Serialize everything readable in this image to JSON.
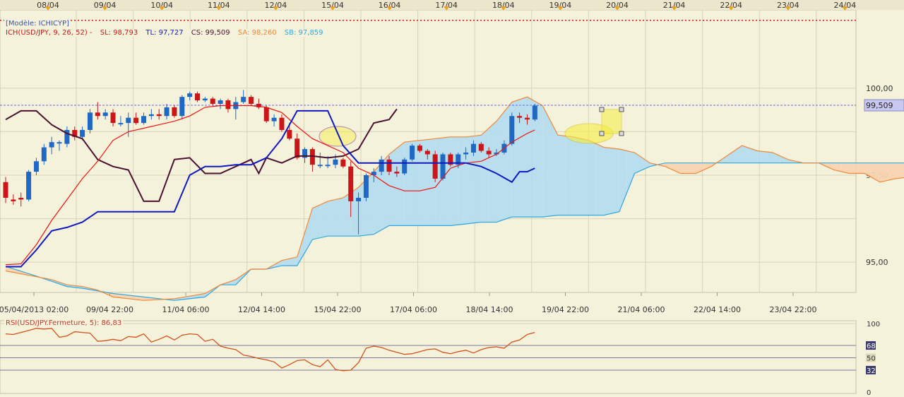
{
  "header": {
    "model": "[Modèle: ICHICYP]",
    "ich_label": "ICH(USD/JPY, 9, 26, 52)  -",
    "sl_label": "SL: 98,793",
    "tl_label": "TL: 97,727",
    "cs_label": "CS: 99,509",
    "sa_label": "SA: 98,260",
    "sb_label": "SB: 97,859",
    "rsi_label": "RSI(USD/JPY.Fermeture, 5): 86,83"
  },
  "colors": {
    "background": "#f5f2dc",
    "plot_bg": "#f5f2dc",
    "grid": "#d8d3b8",
    "up_candle": "#1f68c4",
    "down_candle": "#cc1518",
    "tenkan": "#ee1111",
    "kijun": "#1018c0",
    "chikou": "#4a1030",
    "cloud_bull": "#b5dcee",
    "cloud_bear": "#f8d4b0",
    "senkou_a": "#f0883a",
    "senkou_b": "#30a8dc",
    "price_line": "#6a6ae0",
    "resistance": "#e81010",
    "rsi_line": "#d4501c",
    "highlight": "#f6ef40"
  },
  "chart_data": [
    {
      "type": "candlestick",
      "instrument": "USD/JPY",
      "top_dates": [
        "08/04",
        "09/04",
        "10/04",
        "11/04",
        "12/04",
        "15/04",
        "16/04",
        "17/04",
        "18/04",
        "19/04",
        "20/04",
        "21/04",
        "22/04",
        "23/04",
        "24/04"
      ],
      "x_tick_labels": [
        "05/04/2013 02:00",
        "09/04 22:00",
        "11/04 06:00",
        "12/04 14:00",
        "15/04 22:00",
        "17/04 06:00",
        "18/04 14:00",
        "19/04 22:00",
        "21/04 06:00",
        "22/04 14:00",
        "23/04 22:00"
      ],
      "y_ticks": [
        95,
        97.5,
        100
      ],
      "y_tick_labels": [
        "95,00",
        "97,50",
        "100,00"
      ],
      "ylim": [
        94.13,
        102.25
      ],
      "current_price": 99.509,
      "current_price_label": "99,509",
      "resistance_level": 101.95,
      "bar_count": 70,
      "candles": [
        [
          97.3,
          97.45,
          96.7,
          96.85
        ],
        [
          96.8,
          96.95,
          96.65,
          96.75
        ],
        [
          96.85,
          97.0,
          96.6,
          96.8
        ],
        [
          96.8,
          97.65,
          96.75,
          97.6
        ],
        [
          97.6,
          98.0,
          97.5,
          97.9
        ],
        [
          97.9,
          98.4,
          97.8,
          98.3
        ],
        [
          98.3,
          98.6,
          98.1,
          98.45
        ],
        [
          98.45,
          98.5,
          98.2,
          98.45
        ],
        [
          98.4,
          98.9,
          98.3,
          98.8
        ],
        [
          98.8,
          98.9,
          98.5,
          98.6
        ],
        [
          98.6,
          98.9,
          98.5,
          98.8
        ],
        [
          98.8,
          99.4,
          98.7,
          99.3
        ],
        [
          99.3,
          99.6,
          99.1,
          99.2
        ],
        [
          99.2,
          99.4,
          99.1,
          99.3
        ],
        [
          99.3,
          99.4,
          98.9,
          99.0
        ],
        [
          99.0,
          99.2,
          98.9,
          99.0
        ],
        [
          99.0,
          99.3,
          98.6,
          99.15
        ],
        [
          99.15,
          99.3,
          98.95,
          99.0
        ],
        [
          99.0,
          99.3,
          98.95,
          99.2
        ],
        [
          99.2,
          99.4,
          99.1,
          99.25
        ],
        [
          99.25,
          99.4,
          99.1,
          99.2
        ],
        [
          99.2,
          99.55,
          99.1,
          99.45
        ],
        [
          99.45,
          99.5,
          99.15,
          99.2
        ],
        [
          99.2,
          99.8,
          99.1,
          99.75
        ],
        [
          99.75,
          99.9,
          99.65,
          99.85
        ],
        [
          99.85,
          99.9,
          99.6,
          99.65
        ],
        [
          99.65,
          99.75,
          99.6,
          99.7
        ],
        [
          99.7,
          99.75,
          99.5,
          99.55
        ],
        [
          99.55,
          99.7,
          99.4,
          99.65
        ],
        [
          99.65,
          99.7,
          99.3,
          99.4
        ],
        [
          99.4,
          99.75,
          99.1,
          99.6
        ],
        [
          99.6,
          99.95,
          99.55,
          99.75
        ],
        [
          99.75,
          99.8,
          99.5,
          99.55
        ],
        [
          99.55,
          99.7,
          99.4,
          99.45
        ],
        [
          99.45,
          99.5,
          99.0,
          99.05
        ],
        [
          99.05,
          99.25,
          98.9,
          99.15
        ],
        [
          99.15,
          99.25,
          98.75,
          98.8
        ],
        [
          98.8,
          99.0,
          98.5,
          98.55
        ],
        [
          98.55,
          98.7,
          97.95,
          98.0
        ],
        [
          98.0,
          98.3,
          97.85,
          98.25
        ],
        [
          98.25,
          98.3,
          97.6,
          97.8
        ],
        [
          97.8,
          98.15,
          97.7,
          97.8
        ],
        [
          97.8,
          98.05,
          97.7,
          97.8
        ],
        [
          97.8,
          98.1,
          97.7,
          97.95
        ],
        [
          97.95,
          98.0,
          97.7,
          97.75
        ],
        [
          97.75,
          97.9,
          96.3,
          96.75
        ],
        [
          96.75,
          97.0,
          95.8,
          96.85
        ],
        [
          96.85,
          97.55,
          96.75,
          97.5
        ],
        [
          97.5,
          97.7,
          97.3,
          97.6
        ],
        [
          97.6,
          98.05,
          97.5,
          97.95
        ],
        [
          97.95,
          98.05,
          97.5,
          97.6
        ],
        [
          97.6,
          97.75,
          97.45,
          97.55
        ],
        [
          97.55,
          98.0,
          97.5,
          97.95
        ],
        [
          97.95,
          98.4,
          97.9,
          98.35
        ],
        [
          98.35,
          98.4,
          98.15,
          98.2
        ],
        [
          98.2,
          98.25,
          97.95,
          98.1
        ],
        [
          98.1,
          98.2,
          97.3,
          97.4
        ],
        [
          97.4,
          98.15,
          97.35,
          98.1
        ],
        [
          98.1,
          98.15,
          97.75,
          97.8
        ],
        [
          97.8,
          98.15,
          97.7,
          98.1
        ],
        [
          98.1,
          98.3,
          97.95,
          98.15
        ],
        [
          98.15,
          98.5,
          98.05,
          98.4
        ],
        [
          98.4,
          98.45,
          98.15,
          98.2
        ],
        [
          98.2,
          98.3,
          98.0,
          98.1
        ],
        [
          98.1,
          98.25,
          98.05,
          98.15
        ],
        [
          98.15,
          98.5,
          98.1,
          98.4
        ],
        [
          98.4,
          99.3,
          98.35,
          99.2
        ],
        [
          99.2,
          99.3,
          99.0,
          99.15
        ],
        [
          99.15,
          99.25,
          98.95,
          99.1
        ],
        [
          99.1,
          99.55,
          99.05,
          99.5
        ]
      ],
      "tenkan_sen": [
        [
          0,
          94.93
        ],
        [
          2,
          94.95
        ],
        [
          4,
          95.5
        ],
        [
          6,
          96.2
        ],
        [
          8,
          96.8
        ],
        [
          10,
          97.4
        ],
        [
          12,
          97.9
        ],
        [
          14,
          98.5
        ],
        [
          16,
          98.75
        ],
        [
          18,
          98.85
        ],
        [
          20,
          98.95
        ],
        [
          22,
          99.05
        ],
        [
          24,
          99.2
        ],
        [
          26,
          99.45
        ],
        [
          28,
          99.5
        ],
        [
          30,
          99.5
        ],
        [
          32,
          99.5
        ],
        [
          34,
          99.45
        ],
        [
          36,
          99.3
        ],
        [
          38,
          98.9
        ],
        [
          40,
          98.55
        ],
        [
          42,
          98.35
        ],
        [
          44,
          98.15
        ],
        [
          46,
          97.7
        ],
        [
          48,
          97.5
        ],
        [
          50,
          97.2
        ],
        [
          52,
          97.05
        ],
        [
          54,
          97.05
        ],
        [
          56,
          97.15
        ],
        [
          58,
          97.7
        ],
        [
          60,
          97.85
        ],
        [
          62,
          97.9
        ],
        [
          64,
          98.1
        ],
        [
          66,
          98.45
        ],
        [
          68,
          98.7
        ],
        [
          69,
          98.8
        ]
      ],
      "kijun_sen": [
        [
          0,
          94.87
        ],
        [
          2,
          94.87
        ],
        [
          4,
          95.35
        ],
        [
          6,
          95.9
        ],
        [
          8,
          96.0
        ],
        [
          10,
          96.15
        ],
        [
          12,
          96.45
        ],
        [
          16,
          96.45
        ],
        [
          20,
          96.45
        ],
        [
          22,
          96.45
        ],
        [
          24,
          97.5
        ],
        [
          26,
          97.75
        ],
        [
          28,
          97.75
        ],
        [
          30,
          97.8
        ],
        [
          32,
          97.8
        ],
        [
          34,
          98.0
        ],
        [
          36,
          98.55
        ],
        [
          38,
          99.35
        ],
        [
          40,
          99.35
        ],
        [
          42,
          99.35
        ],
        [
          44,
          98.35
        ],
        [
          46,
          97.85
        ],
        [
          48,
          97.85
        ],
        [
          50,
          97.85
        ],
        [
          52,
          97.85
        ],
        [
          54,
          97.85
        ],
        [
          56,
          97.85
        ],
        [
          58,
          97.85
        ],
        [
          60,
          97.85
        ],
        [
          62,
          97.75
        ],
        [
          64,
          97.55
        ],
        [
          66,
          97.3
        ],
        [
          67,
          97.6
        ],
        [
          68,
          97.6
        ],
        [
          69,
          97.7
        ]
      ],
      "chikou_span": [
        [
          0,
          99.1
        ],
        [
          2,
          99.35
        ],
        [
          4,
          99.35
        ],
        [
          6,
          98.95
        ],
        [
          8,
          98.7
        ],
        [
          10,
          98.55
        ],
        [
          12,
          97.95
        ],
        [
          14,
          97.75
        ],
        [
          16,
          97.65
        ],
        [
          18,
          96.75
        ],
        [
          20,
          96.75
        ],
        [
          22,
          97.95
        ],
        [
          24,
          98.0
        ],
        [
          26,
          97.55
        ],
        [
          28,
          97.55
        ],
        [
          30,
          97.75
        ],
        [
          32,
          97.95
        ],
        [
          33,
          97.55
        ],
        [
          34,
          98.0
        ],
        [
          36,
          97.85
        ],
        [
          38,
          98.05
        ],
        [
          40,
          98.05
        ],
        [
          42,
          98.0
        ],
        [
          44,
          98.05
        ],
        [
          46,
          98.25
        ],
        [
          48,
          99.0
        ],
        [
          50,
          99.1
        ],
        [
          51,
          99.4
        ]
      ],
      "senkou_a": [
        [
          0,
          94.75
        ],
        [
          6,
          94.5
        ],
        [
          8,
          94.35
        ],
        [
          10,
          94.3
        ],
        [
          12,
          94.2
        ],
        [
          14,
          94.0
        ],
        [
          18,
          93.9
        ],
        [
          22,
          93.95
        ],
        [
          26,
          94.1
        ],
        [
          28,
          94.35
        ],
        [
          30,
          94.5
        ],
        [
          32,
          94.8
        ],
        [
          34,
          94.8
        ],
        [
          36,
          95.05
        ],
        [
          38,
          95.15
        ],
        [
          40,
          96.55
        ],
        [
          42,
          96.75
        ],
        [
          44,
          96.85
        ],
        [
          46,
          97.15
        ],
        [
          48,
          97.6
        ],
        [
          50,
          98.1
        ],
        [
          52,
          98.45
        ],
        [
          54,
          98.5
        ],
        [
          56,
          98.55
        ],
        [
          58,
          98.6
        ],
        [
          60,
          98.6
        ],
        [
          62,
          98.65
        ],
        [
          64,
          99.05
        ],
        [
          66,
          99.6
        ],
        [
          68,
          99.75
        ],
        [
          70,
          99.5
        ],
        [
          72,
          98.65
        ],
        [
          74,
          98.6
        ],
        [
          76,
          98.5
        ],
        [
          78,
          98.3
        ],
        [
          80,
          98.25
        ],
        [
          82,
          98.15
        ],
        [
          84,
          97.85
        ],
        [
          86,
          97.75
        ],
        [
          88,
          97.55
        ],
        [
          90,
          97.55
        ],
        [
          92,
          97.75
        ],
        [
          94,
          98.05
        ],
        [
          96,
          98.35
        ],
        [
          98,
          98.2
        ],
        [
          100,
          98.15
        ],
        [
          102,
          97.95
        ],
        [
          104,
          97.85
        ],
        [
          106,
          97.85
        ],
        [
          108,
          97.65
        ],
        [
          110,
          97.55
        ],
        [
          112,
          97.55
        ],
        [
          114,
          97.3
        ],
        [
          116,
          97.4
        ],
        [
          118,
          97.45
        ],
        [
          120,
          97.55
        ],
        [
          122,
          97.9
        ],
        [
          124,
          98.0
        ]
      ],
      "senkou_b": [
        [
          0,
          94.88
        ],
        [
          4,
          94.6
        ],
        [
          6,
          94.45
        ],
        [
          8,
          94.3
        ],
        [
          10,
          94.25
        ],
        [
          14,
          94.1
        ],
        [
          18,
          94.0
        ],
        [
          22,
          93.9
        ],
        [
          26,
          94.0
        ],
        [
          28,
          94.35
        ],
        [
          30,
          94.35
        ],
        [
          32,
          94.8
        ],
        [
          34,
          94.8
        ],
        [
          36,
          94.9
        ],
        [
          38,
          94.9
        ],
        [
          40,
          95.65
        ],
        [
          42,
          95.75
        ],
        [
          44,
          95.75
        ],
        [
          46,
          95.75
        ],
        [
          48,
          95.8
        ],
        [
          50,
          96.05
        ],
        [
          52,
          96.05
        ],
        [
          54,
          96.05
        ],
        [
          56,
          96.05
        ],
        [
          58,
          96.05
        ],
        [
          60,
          96.1
        ],
        [
          62,
          96.15
        ],
        [
          64,
          96.15
        ],
        [
          66,
          96.3
        ],
        [
          68,
          96.3
        ],
        [
          70,
          96.3
        ],
        [
          72,
          96.35
        ],
        [
          74,
          96.35
        ],
        [
          76,
          96.35
        ],
        [
          78,
          96.35
        ],
        [
          80,
          96.45
        ],
        [
          82,
          97.55
        ],
        [
          84,
          97.75
        ],
        [
          86,
          97.85
        ],
        [
          88,
          97.85
        ],
        [
          90,
          97.85
        ],
        [
          92,
          97.85
        ],
        [
          94,
          97.85
        ],
        [
          96,
          97.85
        ],
        [
          98,
          97.85
        ],
        [
          100,
          97.85
        ],
        [
          102,
          97.85
        ],
        [
          104,
          97.85
        ],
        [
          106,
          97.85
        ],
        [
          108,
          97.85
        ],
        [
          110,
          97.85
        ],
        [
          112,
          97.85
        ],
        [
          114,
          97.85
        ],
        [
          116,
          97.85
        ],
        [
          118,
          97.85
        ],
        [
          120,
          97.85
        ],
        [
          122,
          97.85
        ],
        [
          124,
          97.85
        ]
      ]
    },
    {
      "type": "line",
      "name": "RSI(USD/JPY.Fermeture, 5)",
      "ylim": [
        0,
        100
      ],
      "levels": [
        68,
        50,
        32
      ],
      "axis_labels": [
        "100",
        "68",
        "50",
        "32",
        "0"
      ],
      "values": [
        85,
        84,
        87,
        90,
        93,
        92,
        93,
        80,
        82,
        88,
        87,
        86,
        74,
        75,
        77,
        75,
        81,
        80,
        85,
        73,
        77,
        82,
        76,
        83,
        85,
        84,
        74,
        77,
        67,
        64,
        62,
        54,
        52,
        49,
        47,
        44,
        35,
        40,
        46,
        47,
        40,
        37,
        47,
        33,
        31,
        32,
        43,
        64,
        67,
        65,
        61,
        58,
        55,
        56,
        59,
        62,
        63,
        58,
        56,
        59,
        61,
        57,
        62,
        65,
        66,
        64,
        73,
        76,
        84,
        87
      ]
    }
  ]
}
